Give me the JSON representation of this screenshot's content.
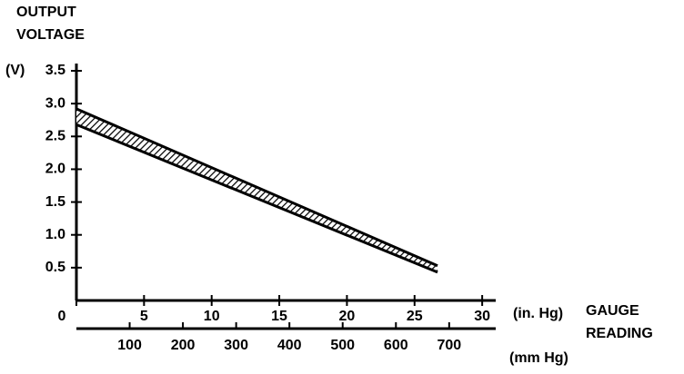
{
  "chart_data": {
    "type": "band",
    "ylabel_lines": [
      "OUTPUT",
      "VOLTAGE"
    ],
    "yunit": "(V)",
    "xunit": "(in. Hg)",
    "xlabel_lines": [
      "GAUGE",
      "READING"
    ],
    "x2unit": "(mm Hg)",
    "x": [
      0,
      26.7
    ],
    "series": [
      {
        "values": [
          2.92,
          0.53
        ]
      },
      {
        "values": [
          2.68,
          0.43
        ]
      }
    ],
    "color": "#000000",
    "ylim": [
      0,
      3.5
    ],
    "yticks": [
      0.5,
      {
        "value": 1,
        "label": "1.0"
      },
      1.5,
      {
        "value": 2,
        "label": "2.0"
      },
      2.5,
      {
        "value": 3,
        "label": "3.0"
      },
      3.5
    ],
    "xlim": [
      0,
      31
    ],
    "xticks": [
      0,
      5,
      10,
      15,
      20,
      25,
      30
    ],
    "x2lim": [
      0,
      787.4
    ],
    "x2ticks": [
      100,
      200,
      300,
      400,
      500,
      600,
      700
    ]
  }
}
